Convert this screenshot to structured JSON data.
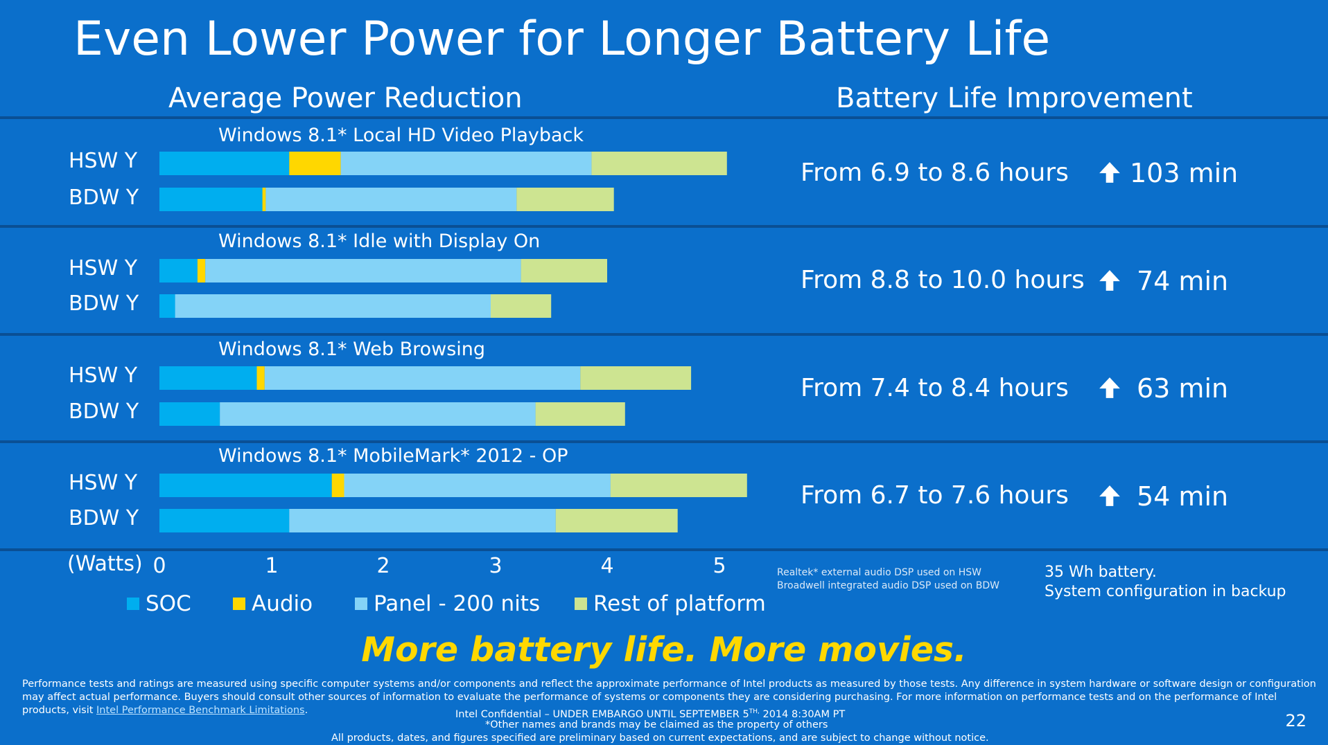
{
  "title": "Even Lower Power for Longer Battery Life",
  "left_heading": "Average Power Reduction",
  "right_heading": "Battery Life Improvement",
  "colors": {
    "background": "#0b6fcb",
    "SOC": "#00aeef",
    "Audio": "#ffd700",
    "Panel - 200 nits": "#84d3f7",
    "Rest of platform": "#cde491",
    "tagline": "#ffd800"
  },
  "chart_data": {
    "type": "bar",
    "orientation": "horizontal",
    "stacked": true,
    "xlabel": "(Watts)",
    "xlim": [
      0,
      5.25
    ],
    "xticks": [
      "0",
      "1",
      "2",
      "3",
      "4",
      "5"
    ],
    "segments": [
      "SOC",
      "Audio",
      "Panel - 200 nits",
      "Rest of platform"
    ],
    "groups": [
      {
        "name": "Windows 8.1* Local HD Video Playback",
        "bars": [
          {
            "label": "HSW Y",
            "values": [
              1.16,
              0.46,
              2.24,
              1.21
            ]
          },
          {
            "label": "BDW Y",
            "values": [
              0.92,
              0.03,
              2.24,
              0.87
            ]
          }
        ]
      },
      {
        "name": "Windows 8.1* Idle with Display On",
        "bars": [
          {
            "label": "HSW Y",
            "values": [
              0.34,
              0.07,
              2.82,
              0.77
            ]
          },
          {
            "label": "BDW Y",
            "values": [
              0.14,
              0.0,
              2.82,
              0.54
            ]
          }
        ]
      },
      {
        "name": "Windows 8.1* Web Browsing",
        "bars": [
          {
            "label": "HSW Y",
            "values": [
              0.87,
              0.07,
              2.82,
              0.99
            ]
          },
          {
            "label": "BDW Y",
            "values": [
              0.54,
              0.0,
              2.82,
              0.8
            ]
          }
        ]
      },
      {
        "name": "Windows 8.1* MobileMark* 2012 - OP",
        "bars": [
          {
            "label": "HSW Y",
            "values": [
              1.54,
              0.11,
              2.38,
              1.22
            ]
          },
          {
            "label": "BDW Y",
            "values": [
              1.16,
              0.0,
              2.38,
              1.09
            ]
          }
        ]
      }
    ]
  },
  "improvements": [
    {
      "text": "From 6.9 to 8.6 hours",
      "gain": "103 min"
    },
    {
      "text": "From 8.8 to 10.0 hours",
      "gain": "74 min"
    },
    {
      "text": "From 7.4 to 8.4 hours",
      "gain": "63 min"
    },
    {
      "text": "From 6.7 to 7.6 hours",
      "gain": "54 min"
    }
  ],
  "audio_note": [
    "Realtek* external audio DSP used on HSW",
    "Broadwell integrated audio DSP used on BDW"
  ],
  "battery_note": [
    "35 Wh battery.",
    "System configuration in backup"
  ],
  "tagline": "More battery life.  More movies.",
  "disclaimer": {
    "line1": "Performance tests and ratings are measured using specific computer systems and/or components and reflect the approximate performance of Intel products as measured by those tests. Any difference in system hardware or software design or configuration",
    "line2": "may affect actual performance. Buyers should consult other sources of information to evaluate the performance of systems or components they are considering purchasing. For more information on performance tests and on the performance of Intel",
    "line3_prefix": "products, visit ",
    "link": "Intel Performance Benchmark Limitations",
    "line3_suffix": "."
  },
  "confidential": {
    "prefix": "Intel Confidential – UNDER EMBARGO UNTIL  SEPTEMBER 5",
    "superscript": "TH,",
    "suffix": " 2014 8:30AM PT"
  },
  "trademark_note": "*Other names and brands may be claimed as the property of others",
  "prelim_note": "All products, dates, and figures specified are preliminary based on current expectations, and are subject to change without notice.",
  "page_number": "22"
}
